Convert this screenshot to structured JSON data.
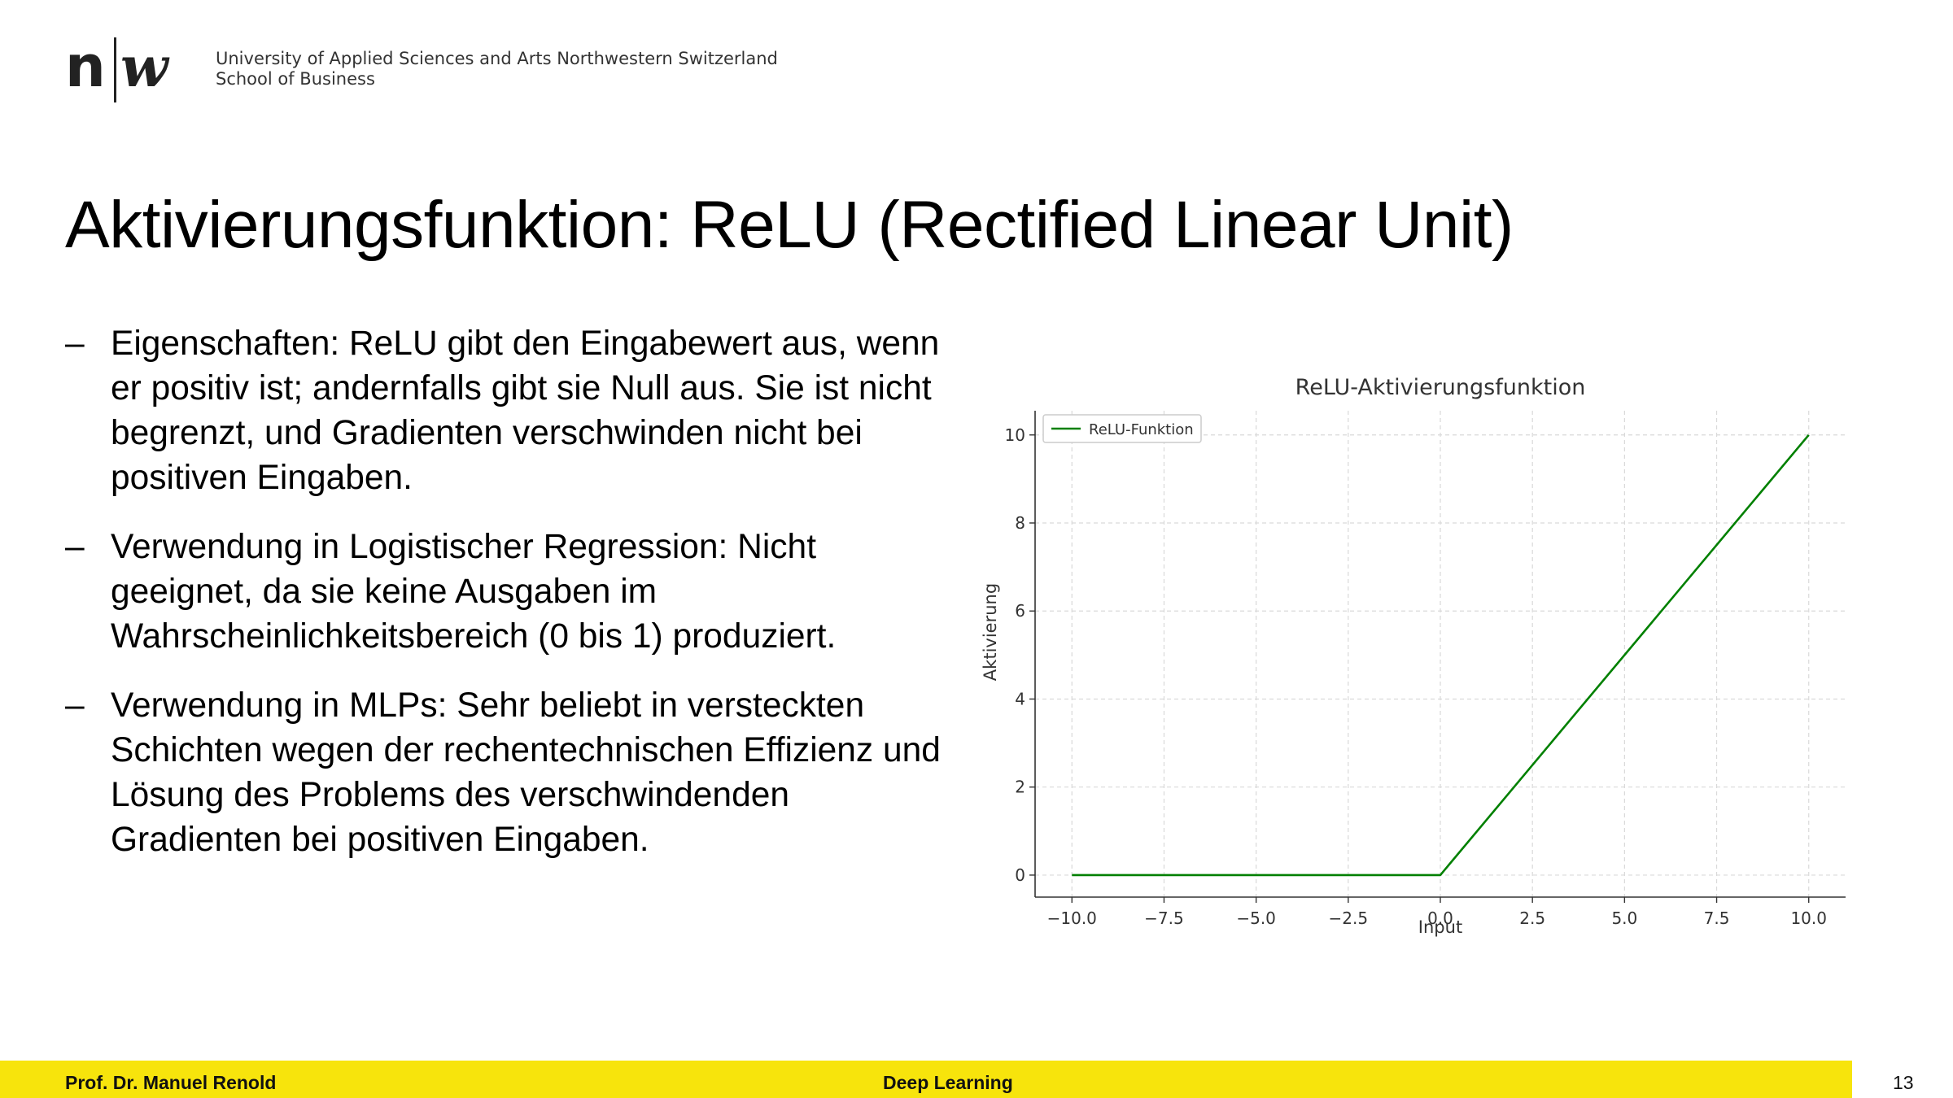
{
  "header": {
    "logo": "n|w",
    "org_line1": "University of Applied Sciences and Arts Northwestern Switzerland",
    "org_line2": "School of Business"
  },
  "slide": {
    "title": "Aktivierungsfunktion: ReLU (Rectified Linear Unit)",
    "bullet_marker": "–",
    "bullets": [
      "Eigenschaften: ReLU gibt den Eingabewert aus, wenn er positiv ist; andernfalls gibt sie Null aus. Sie ist nicht begrenzt, und Gradienten verschwinden nicht bei positiven Eingaben.",
      "Verwendung in Logistischer Regression: Nicht geeignet, da sie keine Ausgaben im Wahrscheinlichkeitsbereich (0 bis 1) produziert.",
      "Verwendung in MLPs: Sehr beliebt in versteckten Schichten wegen der rechentechnischen Effizienz und Lösung des Problems des verschwindenden Gradienten bei positiven Eingaben."
    ]
  },
  "chart_data": {
    "type": "line",
    "title": "ReLU-Aktivierungsfunktion",
    "xlabel": "Input",
    "ylabel": "Aktivierung",
    "xlim": [
      -11,
      11
    ],
    "ylim": [
      -0.5,
      10.55
    ],
    "xticks": [
      -10,
      -7.5,
      -5,
      -2.5,
      0,
      2.5,
      5,
      7.5,
      10
    ],
    "xtick_labels": [
      "−10.0",
      "−7.5",
      "−5.0",
      "−2.5",
      "0.0",
      "2.5",
      "5.0",
      "7.5",
      "10.0"
    ],
    "yticks": [
      0,
      2,
      4,
      6,
      8,
      10
    ],
    "ytick_labels": [
      "0",
      "2",
      "4",
      "6",
      "8",
      "10"
    ],
    "grid": true,
    "legend_position": "top-left",
    "series": [
      {
        "name": "ReLU-Funktion",
        "color": "#008000",
        "x": [
          -10,
          0,
          10
        ],
        "y": [
          0,
          0,
          10
        ]
      }
    ]
  },
  "footer": {
    "author": "Prof. Dr. Manuel Renold",
    "course": "Deep Learning",
    "page": "13",
    "bar_color": "#f7e40c"
  }
}
